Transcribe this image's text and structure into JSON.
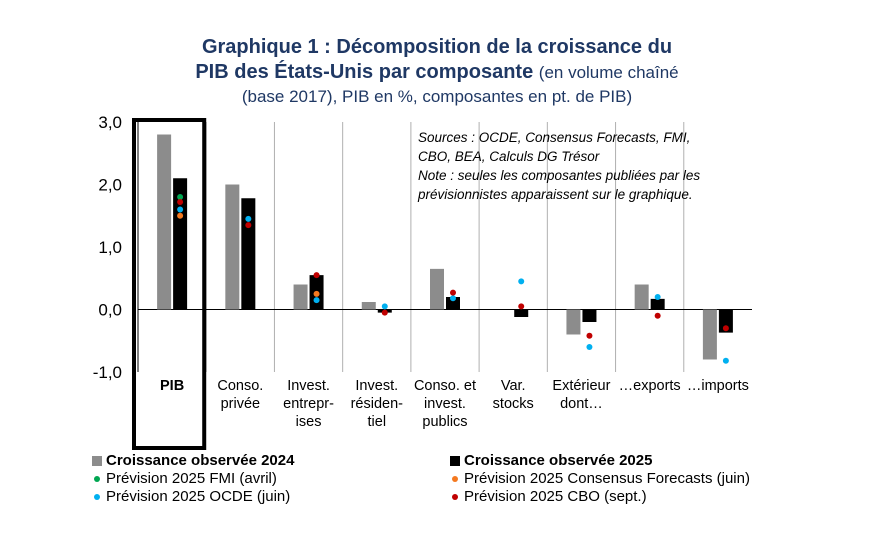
{
  "title": {
    "line1": "Graphique 1 : Décomposition de la croissance du",
    "line2_bold": "PIB des États-Unis par composante",
    "line2_normal": "(en volume chaîné",
    "line3": "(base 2017), PIB en %, composantes en pt. de PIB)"
  },
  "note": {
    "line1": "Sources : OCDE, Consensus Forecasts, FMI,",
    "line2": "CBO, BEA, Calculs DG Trésor",
    "line3": "Note : seules les composantes publiées par les",
    "line4": "prévisionnistes apparaissent sur le graphique."
  },
  "colors": {
    "obs2024": "#8c8c8c",
    "obs2025": "#000000",
    "fmi": "#00a651",
    "consensus": "#f47920",
    "ocde": "#00b0f0",
    "cbo": "#c00000"
  },
  "chart_data": {
    "type": "bar",
    "title": "Décomposition de la croissance du PIB des États-Unis par composante",
    "ylim": [
      -1.0,
      3.0
    ],
    "yticks": [
      "3,0",
      "2,0",
      "1,0",
      "0,0",
      "-1,0"
    ],
    "ytick_values": [
      3.0,
      2.0,
      1.0,
      0.0,
      -1.0
    ],
    "categories": [
      [
        "PIB"
      ],
      [
        "Conso.",
        "privée"
      ],
      [
        "Invest.",
        "entrepr-",
        "ises"
      ],
      [
        "Invest.",
        "résiden-",
        "tiel"
      ],
      [
        "Conso. et",
        "invest.",
        "publics"
      ],
      [
        "Var.",
        "stocks"
      ],
      [
        "Extérieur",
        "dont…"
      ],
      [
        "…exports"
      ],
      [
        "…imports"
      ]
    ],
    "series": [
      {
        "name": "Croissance observée 2024",
        "kind": "bar",
        "values": [
          2.8,
          2.0,
          0.4,
          0.12,
          0.65,
          0.0,
          -0.4,
          0.4,
          -0.8
        ]
      },
      {
        "name": "Croissance observée 2025",
        "kind": "bar",
        "values": [
          2.1,
          1.78,
          0.55,
          -0.05,
          0.2,
          -0.12,
          -0.2,
          0.17,
          -0.37
        ]
      },
      {
        "name": "Prévision 2025 FMI (avril)",
        "kind": "point",
        "values": [
          1.8,
          null,
          null,
          null,
          null,
          null,
          null,
          null,
          null
        ]
      },
      {
        "name": "Prévision 2025 Consensus Forecasts (juin)",
        "kind": "point",
        "values": [
          1.5,
          null,
          0.25,
          null,
          null,
          null,
          null,
          null,
          null
        ]
      },
      {
        "name": "Prévision 2025 OCDE (juin)",
        "kind": "point",
        "values": [
          1.6,
          1.45,
          0.15,
          0.05,
          0.18,
          0.45,
          -0.6,
          0.2,
          -0.82
        ]
      },
      {
        "name": "Prévision 2025 CBO (sept.)",
        "kind": "point",
        "values": [
          1.72,
          1.35,
          0.55,
          -0.05,
          0.27,
          0.05,
          -0.42,
          -0.1,
          -0.3
        ]
      }
    ]
  },
  "legend": {
    "obs2024": "Croissance observée 2024",
    "obs2025": "Croissance observée 2025",
    "fmi": "Prévision 2025 FMI (avril)",
    "consensus": "Prévision 2025 Consensus Forecasts (juin)",
    "ocde": "Prévision 2025 OCDE (juin)",
    "cbo": "Prévision 2025 CBO (sept.)"
  }
}
